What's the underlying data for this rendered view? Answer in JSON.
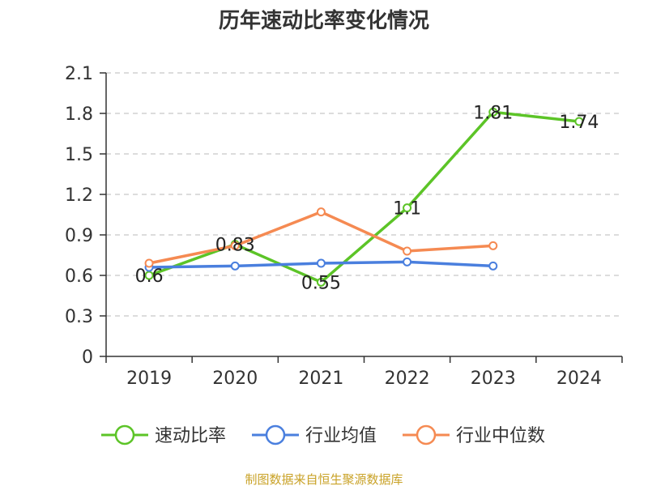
{
  "chart_data": {
    "type": "line",
    "title": "历年速动比率变化情况",
    "categories": [
      "2019",
      "2020",
      "2021",
      "2022",
      "2023",
      "2024"
    ],
    "y_ticks": [
      "0",
      "0.3",
      "0.6",
      "0.9",
      "1.2",
      "1.5",
      "1.8",
      "2.1"
    ],
    "ylim": [
      0,
      2.1
    ],
    "grid": true,
    "legend_position": "bottom",
    "series": [
      {
        "name": "速动比率",
        "color": "#5cc427",
        "values": [
          0.6,
          0.83,
          0.55,
          1.1,
          1.81,
          1.74
        ],
        "labels": [
          "0.6",
          "0.83",
          "0.55",
          "1.1",
          "1.81",
          "1.74"
        ]
      },
      {
        "name": "行业均值",
        "color": "#4a7fde",
        "values": [
          0.66,
          0.67,
          0.69,
          0.7,
          0.67,
          null
        ]
      },
      {
        "name": "行业中位数",
        "color": "#f58a52",
        "values": [
          0.69,
          0.82,
          1.07,
          0.78,
          0.82,
          null
        ]
      }
    ]
  },
  "source_note": "制图数据来自恒生聚源数据库"
}
